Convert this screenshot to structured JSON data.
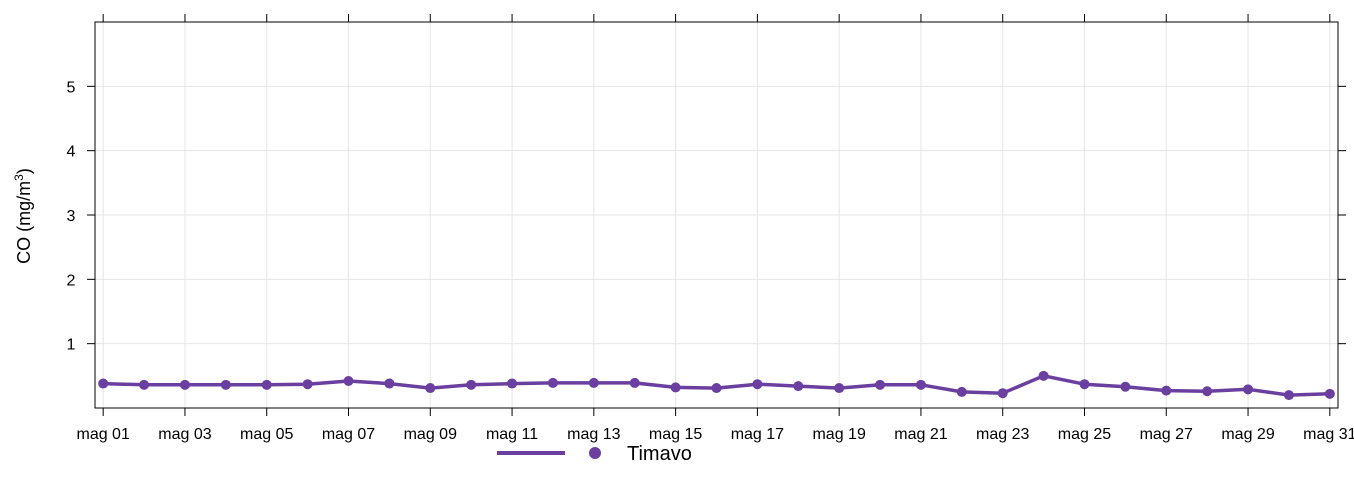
{
  "chart_data": {
    "type": "line",
    "ylabel": "CO (mg/m",
    "ylabel_sup": "3",
    "ylabel_close": ")",
    "ylim": [
      0,
      6
    ],
    "y_ticks": [
      1,
      2,
      3,
      4,
      5
    ],
    "xlim": [
      0.8,
      31.2
    ],
    "x_ticks": [
      "mag 01",
      "mag 03",
      "mag 05",
      "mag 07",
      "mag 09",
      "mag 11",
      "mag 13",
      "mag 15",
      "mag 17",
      "mag 19",
      "mag 21",
      "mag 23",
      "mag 25",
      "mag 27",
      "mag 29",
      "mag 31"
    ],
    "grid": true,
    "legend_position": "bottom",
    "categories": [
      "mag 01",
      "mag 02",
      "mag 03",
      "mag 04",
      "mag 05",
      "mag 06",
      "mag 07",
      "mag 08",
      "mag 09",
      "mag 10",
      "mag 11",
      "mag 12",
      "mag 13",
      "mag 14",
      "mag 15",
      "mag 16",
      "mag 17",
      "mag 18",
      "mag 19",
      "mag 20",
      "mag 21",
      "mag 22",
      "mag 23",
      "mag 24",
      "mag 25",
      "mag 26",
      "mag 27",
      "mag 28",
      "mag 29",
      "mag 30",
      "mag 31"
    ],
    "series": [
      {
        "name": "Timavo",
        "color": "#6b3fa0",
        "values": [
          0.38,
          0.36,
          0.36,
          0.36,
          0.36,
          0.37,
          0.42,
          0.38,
          0.31,
          0.36,
          0.38,
          0.39,
          0.39,
          0.39,
          0.32,
          0.31,
          0.37,
          0.34,
          0.31,
          0.36,
          0.36,
          0.25,
          0.23,
          0.5,
          0.37,
          0.33,
          0.27,
          0.26,
          0.29,
          0.2,
          0.22
        ]
      }
    ]
  }
}
